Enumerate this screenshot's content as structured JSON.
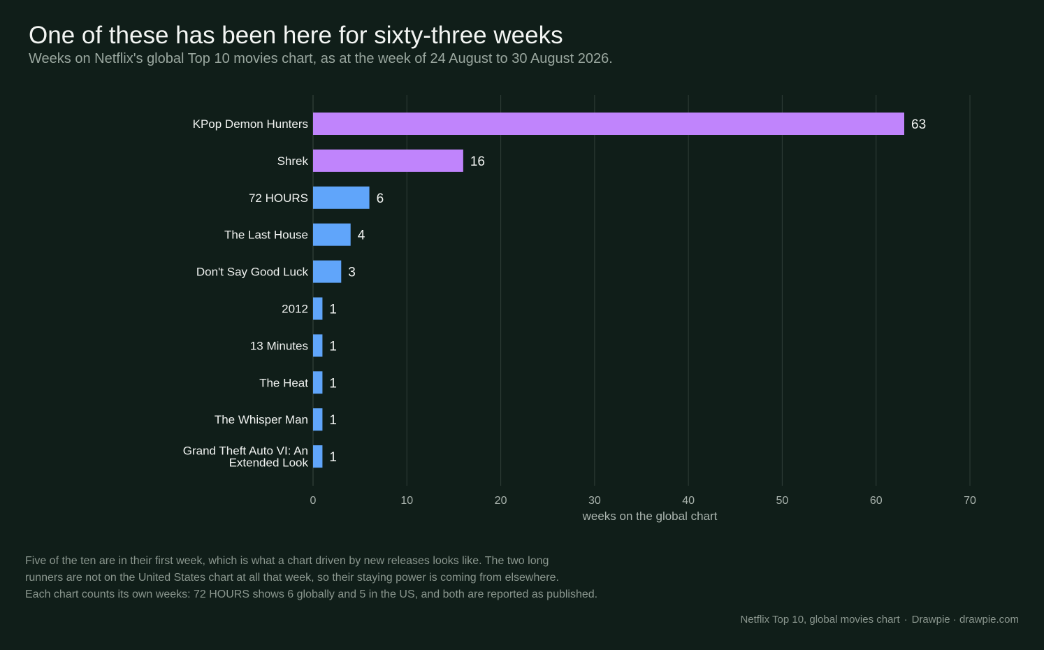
{
  "header": {
    "title": "One of these has been here for sixty-three weeks",
    "subtitle": "Weeks on Netflix's global Top 10 movies chart, as at the week of 24 August to 30 August 2026."
  },
  "chart_data": {
    "type": "bar",
    "orientation": "horizontal",
    "categories": [
      "KPop Demon Hunters",
      "Shrek",
      "72 HOURS",
      "The Last House",
      "Don't Say Good Luck",
      "2012",
      "13 Minutes",
      "The Heat",
      "The Whisper Man",
      "Grand Theft Auto VI: An Extended Look"
    ],
    "values": [
      63,
      16,
      6,
      4,
      3,
      1,
      1,
      1,
      1,
      1
    ],
    "highlight": [
      true,
      true,
      false,
      false,
      false,
      false,
      false,
      false,
      false,
      false
    ],
    "colors": {
      "highlight": "#c084fc",
      "default": "#60a5fa",
      "grid": "#2c3a34",
      "tick_text": "#aab4ae",
      "category_text": "#f1f3f1",
      "value_text": "#f1f3f1"
    },
    "xlabel": "weeks on the global chart",
    "xlim": [
      0,
      70
    ],
    "xticks": [
      0,
      10,
      20,
      30,
      40,
      50,
      60,
      70
    ],
    "grid": true
  },
  "notes": {
    "line1": "Five of the ten are in their first week, which is what a chart driven by new releases looks like. The two long",
    "line2": "runners are not on the United States chart at all that week, so their staying power is coming from elsewhere.",
    "line3": "Each chart counts its own weeks: 72 HOURS shows 6 globally and 5 in the US, and both are reported as published."
  },
  "source": {
    "text": "Netflix Top 10, global movies chart",
    "separator": "·",
    "credit": "Drawpie · drawpie.com"
  }
}
